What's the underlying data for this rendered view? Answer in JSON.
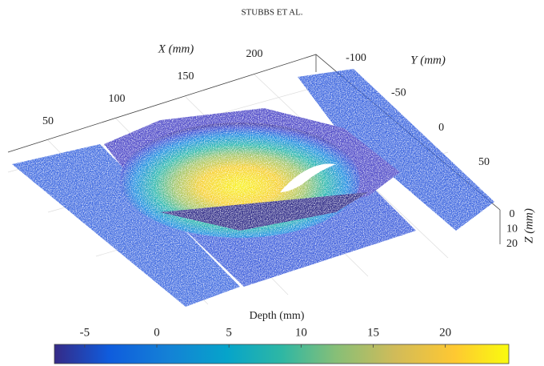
{
  "header": "STUBBS ET AL.",
  "figure": {
    "x_axis": {
      "label": "X (mm)",
      "ticks": [
        50,
        100,
        150,
        200
      ]
    },
    "y_axis": {
      "label": "Y (mm)",
      "ticks": [
        -100,
        -50,
        0,
        50
      ]
    },
    "z_axis": {
      "label": "Z (mm)",
      "ticks": [
        0,
        10,
        20
      ]
    },
    "colorbar": {
      "label": "Depth (mm)",
      "lim": [
        -7.1,
        24.4
      ],
      "ticks": [
        -5,
        0,
        5,
        10,
        15,
        20
      ]
    }
  }
}
